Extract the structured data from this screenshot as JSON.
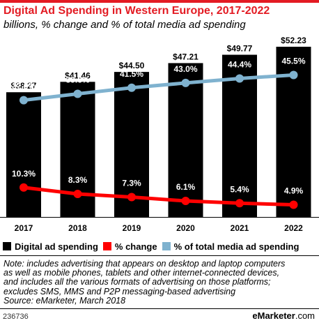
{
  "header": {
    "title": "Digital Ad Spending in Western Europe, 2017-2022",
    "subtitle": "billions, % change and % of total media ad spending"
  },
  "chart_data": {
    "type": "bar",
    "categories": [
      "2017",
      "2018",
      "2019",
      "2020",
      "2021",
      "2022"
    ],
    "series": [
      {
        "name": "Digital ad spending",
        "kind": "bar",
        "color": "#000000",
        "values": [
          38.27,
          41.46,
          44.5,
          47.21,
          49.77,
          52.23
        ],
        "labels": [
          "$38.27",
          "$41.46",
          "$44.50",
          "$47.21",
          "$49.77",
          "$52.23"
        ]
      },
      {
        "name": "% change",
        "kind": "line",
        "color": "#ff0000",
        "values": [
          10.3,
          8.3,
          7.3,
          6.1,
          5.4,
          4.9
        ],
        "labels": [
          "10.3%",
          "8.3%",
          "7.3%",
          "6.1%",
          "5.4%",
          "4.9%"
        ]
      },
      {
        "name": "% of total media ad spending",
        "kind": "line",
        "color": "#7fb2cf",
        "values": [
          37.6,
          39.6,
          41.5,
          43.0,
          44.4,
          45.5
        ],
        "labels": [
          "37.6%",
          "39.6%",
          "41.5%",
          "43.0%",
          "44.4%",
          "45.5%"
        ]
      }
    ],
    "bar_ylim": [
      0,
      55
    ],
    "line_ylim": [
      0,
      60
    ],
    "legend_position": "bottom"
  },
  "legend": {
    "items": [
      {
        "label": "Digital ad spending",
        "color": "#000000"
      },
      {
        "label": "% change",
        "color": "#ff0000"
      },
      {
        "label": "% of total media ad spending",
        "color": "#7fb2cf"
      }
    ]
  },
  "note": {
    "lines": [
      "Note: includes advertising that appears on desktop and laptop computers",
      "as well as mobile phones, tablets and other internet-connected devices,",
      "and includes all the various formats of advertising on those platforms;",
      "excludes SMS, MMS and P2P messaging-based advertising",
      "Source: eMarketer, March 2018"
    ]
  },
  "footer": {
    "chart_id": "236736",
    "brand_prefix": "e",
    "brand_name": "Marketer",
    "brand_suffix": ".com"
  }
}
